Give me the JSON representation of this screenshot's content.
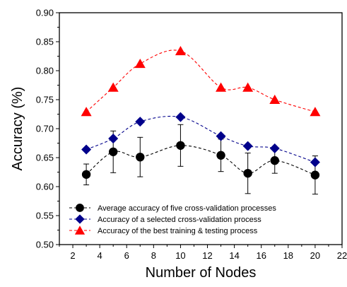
{
  "chart_data": {
    "type": "line",
    "xlabel": "Number of Nodes",
    "ylabel": "Accuracy (%)",
    "xlim": [
      1,
      22
    ],
    "ylim": [
      0.5,
      0.9
    ],
    "xticks": [
      "2",
      "4",
      "6",
      "8",
      "10",
      "12",
      "14",
      "16",
      "18",
      "20",
      "22"
    ],
    "yticks": [
      "0.50",
      "0.55",
      "0.60",
      "0.65",
      "0.70",
      "0.75",
      "0.80",
      "0.85",
      "0.90"
    ],
    "grid": false,
    "legend_position": "bottom-left",
    "x": [
      3,
      5,
      7,
      10,
      13,
      15,
      17,
      20
    ],
    "series": [
      {
        "name": "Average accuracy of five cross-validation processes",
        "marker": "circle",
        "color": "#000000",
        "values": [
          0.621,
          0.66,
          0.651,
          0.671,
          0.654,
          0.623,
          0.645,
          0.62
        ],
        "error": [
          0.018,
          0.036,
          0.034,
          0.036,
          0.028,
          0.035,
          0.022,
          0.033
        ]
      },
      {
        "name": "Accuracy of a selected cross-validation process",
        "marker": "diamond",
        "color": "#00008b",
        "values": [
          0.664,
          0.683,
          0.712,
          0.72,
          0.687,
          0.67,
          0.666,
          0.642
        ]
      },
      {
        "name": "Accuracy of the best training & testing process",
        "marker": "triangle",
        "color": "#ff0000",
        "values": [
          0.729,
          0.771,
          0.812,
          0.834,
          0.771,
          0.771,
          0.75,
          0.729
        ]
      }
    ]
  }
}
